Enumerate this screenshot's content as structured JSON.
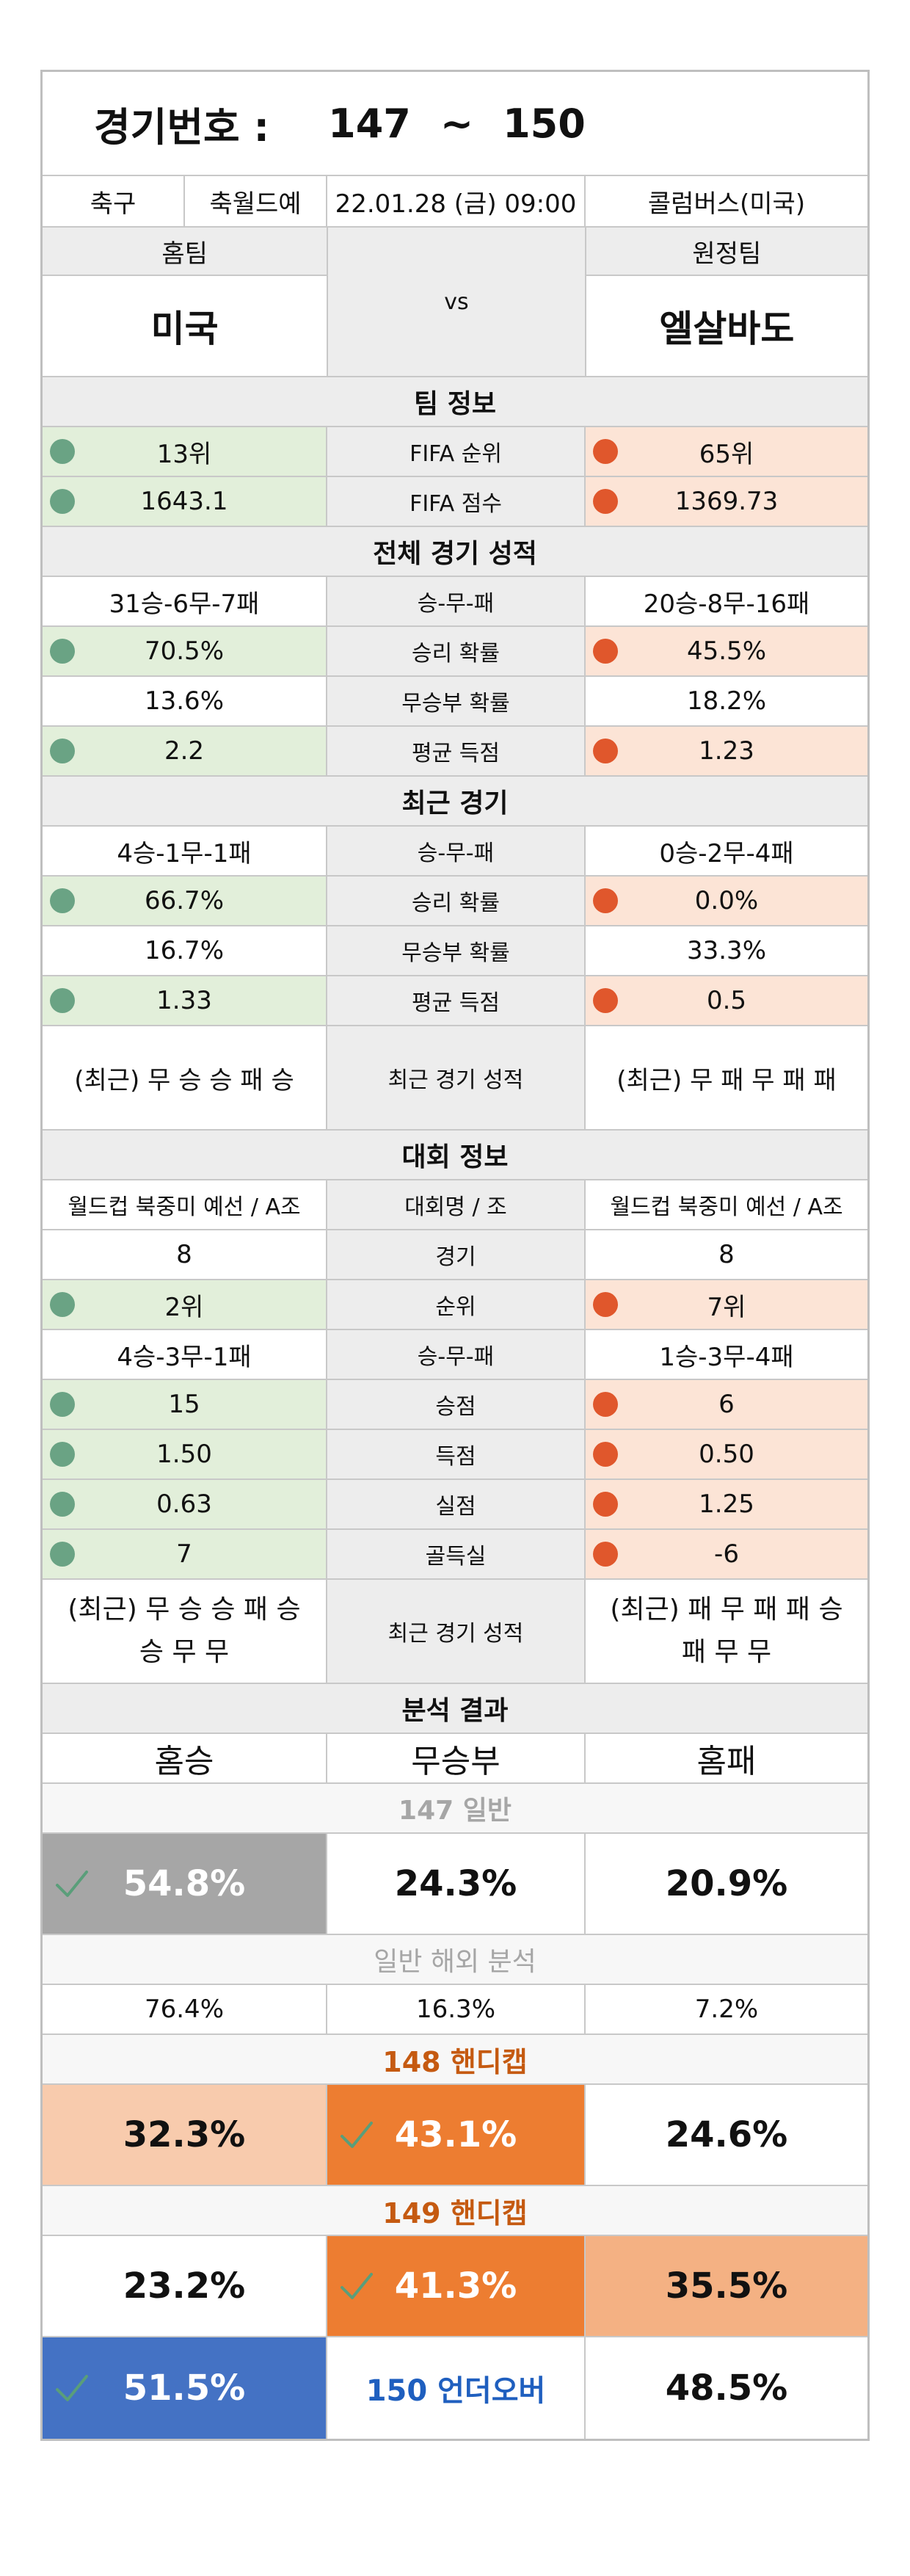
{
  "header": {
    "label": "경기번호 :",
    "from": "147",
    "tilde": "~",
    "to": "150"
  },
  "meta": {
    "sport": "축구",
    "league": "축월드예",
    "datetime": "22.01.28 (금) 09:00",
    "venue": "콜럼버스(미국)"
  },
  "teams": {
    "home_label": "홈팀",
    "away_label": "원정팀",
    "vs": "vs",
    "home": "미국",
    "away": "엘살바도"
  },
  "team_info": {
    "title": "팀 정보",
    "rows": [
      {
        "label": "FIFA 순위",
        "home": "13위",
        "away": "65위"
      },
      {
        "label": "FIFA 점수",
        "home": "1643.1",
        "away": "1369.73"
      }
    ]
  },
  "overall": {
    "title": "전체 경기 성적",
    "record": {
      "label": "승-무-패",
      "home": "31승-6무-7패",
      "away": "20승-8무-16패"
    },
    "win": {
      "label": "승리 확률",
      "home": "70.5%",
      "away": "45.5%"
    },
    "draw": {
      "label": "무승부 확률",
      "home": "13.6%",
      "away": "18.2%"
    },
    "goals": {
      "label": "평균 득점",
      "home": "2.2",
      "away": "1.23"
    }
  },
  "recent": {
    "title": "최근 경기",
    "record": {
      "label": "승-무-패",
      "home": "4승-1무-1패",
      "away": "0승-2무-4패"
    },
    "win": {
      "label": "승리 확률",
      "home": "66.7%",
      "away": "0.0%"
    },
    "draw": {
      "label": "무승부 확률",
      "home": "16.7%",
      "away": "33.3%"
    },
    "goals": {
      "label": "평균 득점",
      "home": "1.33",
      "away": "0.5"
    },
    "form": {
      "label": "최근 경기 성적",
      "home": "(최근) 무 승 승 패 승",
      "away": "(최근) 무 패 무 패 패"
    }
  },
  "tournament": {
    "title": "대회 정보",
    "name": {
      "label": "대회명 / 조",
      "home": "월드컵 북중미 예선 / A조",
      "away": "월드컵 북중미 예선 / A조"
    },
    "games": {
      "label": "경기",
      "home": "8",
      "away": "8"
    },
    "rank": {
      "label": "순위",
      "home": "2위",
      "away": "7위"
    },
    "record": {
      "label": "승-무-패",
      "home": "4승-3무-1패",
      "away": "1승-3무-4패"
    },
    "points": {
      "label": "승점",
      "home": "15",
      "away": "6"
    },
    "scored": {
      "label": "득점",
      "home": "1.50",
      "away": "0.50"
    },
    "conceded": {
      "label": "실점",
      "home": "0.63",
      "away": "1.25"
    },
    "diff": {
      "label": "골득실",
      "home": "7",
      "away": "-6"
    },
    "form": {
      "label": "최근 경기 성적",
      "home": "(최근) 무 승 승 패 승 승 무 무",
      "away": "(최근) 패 무 패 패 승 패 무 무"
    }
  },
  "analysis": {
    "title": "분석 결과",
    "cols": {
      "home_win": "홈승",
      "draw": "무승부",
      "home_loss": "홈패"
    },
    "general": {
      "title": "147 일반",
      "home_win": "54.8%",
      "draw": "24.3%",
      "home_loss": "20.9%"
    },
    "overseas": {
      "title": "일반 해외 분석",
      "home_win": "76.4%",
      "draw": "16.3%",
      "home_loss": "7.2%"
    },
    "handicap148": {
      "title": "148 핸디캡",
      "home_win": "32.3%",
      "draw": "43.1%",
      "home_loss": "24.6%"
    },
    "handicap149": {
      "title": "149 핸디캡",
      "home_win": "23.2%",
      "draw": "41.3%",
      "home_loss": "35.5%"
    },
    "underover150": {
      "under": "51.5%",
      "title": "150 언더오버",
      "over": "48.5%"
    }
  },
  "colors": {
    "home_dot": "#6aa384",
    "away_dot": "#e0572c",
    "home_fill": "#e2efda",
    "away_fill": "#fce4d6",
    "accent_orange": "#ed7d31",
    "accent_blue": "#4472c4"
  }
}
